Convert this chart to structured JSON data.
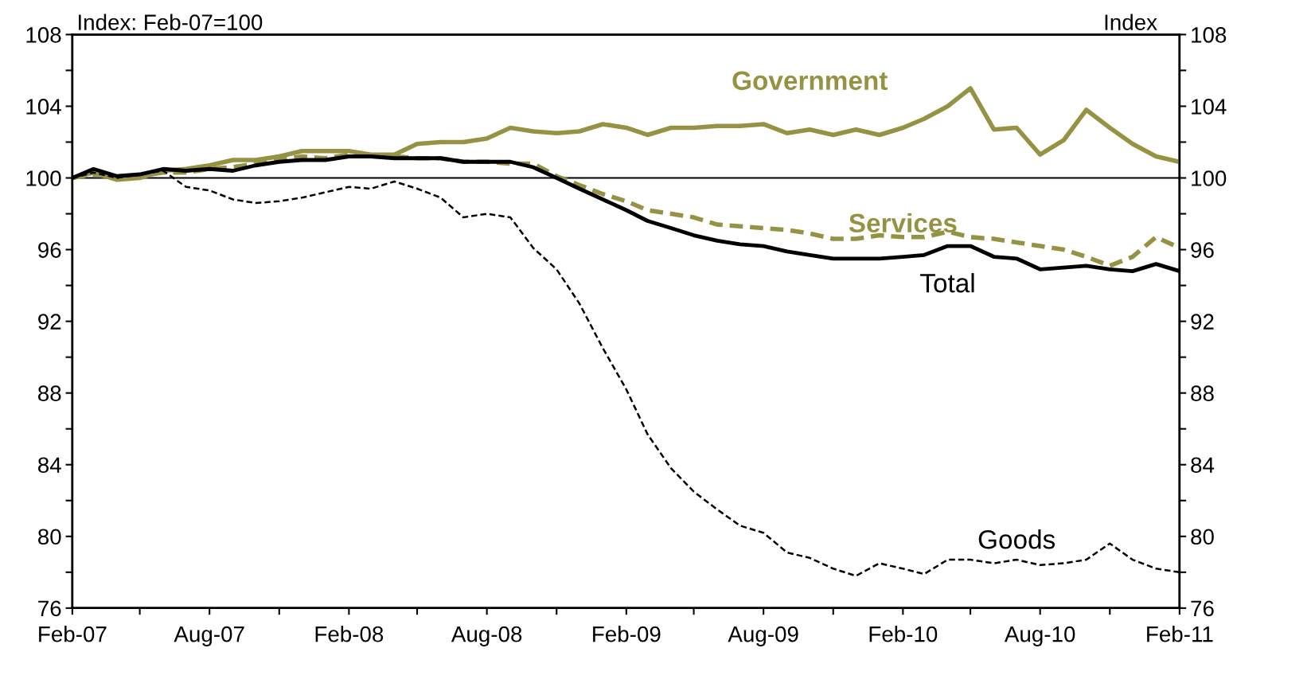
{
  "chart_data": {
    "type": "line",
    "ylabel": "Index: Feb-07=100",
    "y2label": "Index",
    "x": [
      "2007-02",
      "2007-03",
      "2007-04",
      "2007-05",
      "2007-06",
      "2007-07",
      "2007-08",
      "2007-09",
      "2007-10",
      "2007-11",
      "2007-12",
      "2008-01",
      "2008-02",
      "2008-03",
      "2008-04",
      "2008-05",
      "2008-06",
      "2008-07",
      "2008-08",
      "2008-09",
      "2008-10",
      "2008-11",
      "2008-12",
      "2009-01",
      "2009-02",
      "2009-03",
      "2009-04",
      "2009-05",
      "2009-06",
      "2009-07",
      "2009-08",
      "2009-09",
      "2009-10",
      "2009-11",
      "2009-12",
      "2010-01",
      "2010-02",
      "2010-03",
      "2010-04",
      "2010-05",
      "2010-06",
      "2010-07",
      "2010-08",
      "2010-09",
      "2010-10",
      "2010-11",
      "2010-12",
      "2011-01",
      "2011-02"
    ],
    "series": [
      {
        "name": "Government",
        "color": "#959343",
        "line_style": "solid",
        "values": [
          100,
          100.3,
          99.9,
          100.0,
          100.4,
          100.5,
          100.7,
          101.0,
          101.0,
          101.2,
          101.5,
          101.5,
          101.5,
          101.3,
          101.3,
          101.9,
          102.0,
          102.0,
          102.2,
          102.8,
          102.6,
          102.5,
          102.6,
          103.0,
          102.8,
          102.4,
          102.8,
          102.8,
          102.9,
          102.9,
          103.0,
          102.5,
          102.7,
          102.4,
          102.7,
          102.4,
          102.8,
          103.3,
          104.0,
          105.0,
          102.7,
          102.8,
          101.3,
          102.1,
          103.8,
          102.8,
          101.9,
          101.2,
          100.9
        ]
      },
      {
        "name": "Services",
        "color": "#959343",
        "line_style": "dashed",
        "values": [
          100,
          100.2,
          100.0,
          100.1,
          100.3,
          100.3,
          100.5,
          100.6,
          100.8,
          101.0,
          101.2,
          101.1,
          101.3,
          101.2,
          101.2,
          101.1,
          101.1,
          100.9,
          100.9,
          100.8,
          100.8,
          100.1,
          99.6,
          99.1,
          98.7,
          98.2,
          98.0,
          97.8,
          97.4,
          97.3,
          97.2,
          97.1,
          96.9,
          96.6,
          96.6,
          96.8,
          96.7,
          96.7,
          97.0,
          96.7,
          96.6,
          96.4,
          96.2,
          96.0,
          95.6,
          95.1,
          95.6,
          96.7,
          96.1
        ]
      },
      {
        "name": "Total",
        "color": "#000000",
        "line_style": "solid",
        "values": [
          100,
          100.5,
          100.1,
          100.2,
          100.5,
          100.4,
          100.5,
          100.4,
          100.7,
          100.9,
          101.0,
          101.0,
          101.2,
          101.2,
          101.1,
          101.1,
          101.1,
          100.9,
          100.9,
          100.9,
          100.6,
          100.0,
          99.4,
          98.8,
          98.2,
          97.6,
          97.2,
          96.8,
          96.5,
          96.3,
          96.2,
          95.9,
          95.7,
          95.5,
          95.5,
          95.5,
          95.6,
          95.7,
          96.2,
          96.2,
          95.6,
          95.5,
          94.9,
          95.0,
          95.1,
          94.9,
          94.8,
          95.2,
          94.8
        ]
      },
      {
        "name": "Goods",
        "color": "#000000",
        "line_style": "dashed",
        "values": [
          100,
          100.3,
          100.0,
          100.2,
          100.4,
          99.5,
          99.3,
          98.8,
          98.6,
          98.7,
          98.9,
          99.2,
          99.5,
          99.4,
          99.8,
          99.4,
          98.9,
          97.8,
          98.0,
          97.8,
          96.1,
          94.9,
          93.0,
          90.5,
          88.2,
          85.7,
          83.8,
          82.5,
          81.5,
          80.6,
          80.2,
          79.1,
          78.8,
          78.2,
          77.8,
          78.5,
          78.2,
          77.9,
          78.7,
          78.7,
          78.5,
          78.7,
          78.4,
          78.5,
          78.7,
          79.6,
          78.7,
          78.2,
          78.0
        ]
      }
    ],
    "xlim": [
      "2007-02",
      "2011-02"
    ],
    "xticks": [
      {
        "value": "2007-02",
        "label": "Feb-07"
      },
      {
        "value": "2007-05",
        "label": null
      },
      {
        "value": "2007-08",
        "label": "Aug-07"
      },
      {
        "value": "2007-11",
        "label": null
      },
      {
        "value": "2008-02",
        "label": "Feb-08"
      },
      {
        "value": "2008-05",
        "label": null
      },
      {
        "value": "2008-08",
        "label": "Aug-08"
      },
      {
        "value": "2008-11",
        "label": null
      },
      {
        "value": "2009-02",
        "label": "Feb-09"
      },
      {
        "value": "2009-05",
        "label": null
      },
      {
        "value": "2009-08",
        "label": "Aug-09"
      },
      {
        "value": "2009-11",
        "label": null
      },
      {
        "value": "2010-02",
        "label": "Feb-10"
      },
      {
        "value": "2010-05",
        "label": null
      },
      {
        "value": "2010-08",
        "label": "Aug-10"
      },
      {
        "value": "2010-11",
        "label": null
      },
      {
        "value": "2011-02",
        "label": "Feb-11"
      }
    ],
    "ylim": [
      76,
      108
    ],
    "yticks": [
      76,
      {
        "value": 78,
        "label": null
      },
      80,
      {
        "value": 82,
        "label": null
      },
      84,
      {
        "value": 86,
        "label": null
      },
      88,
      {
        "value": 90,
        "label": null
      },
      92,
      {
        "value": 94,
        "label": null
      },
      96,
      {
        "value": 98,
        "label": null
      },
      100,
      {
        "value": 102,
        "label": null
      },
      104,
      {
        "value": 106,
        "label": null
      },
      108
    ],
    "y2lim": [
      76,
      108
    ],
    "y2ticks": [
      76,
      {
        "value": 78,
        "label": null
      },
      80,
      {
        "value": 82,
        "label": null
      },
      84,
      {
        "value": 86,
        "label": null
      },
      88,
      {
        "value": 90,
        "label": null
      },
      92,
      {
        "value": 94,
        "label": null
      },
      96,
      {
        "value": 98,
        "label": null
      },
      100,
      {
        "value": 102,
        "label": null
      },
      104,
      {
        "value": 106,
        "label": null
      },
      108
    ],
    "ref_lines": [
      {
        "axis": "y",
        "value": 100,
        "color": "#000000",
        "line_style": "solid"
      }
    ],
    "grid": false,
    "legend": false,
    "marker": "none"
  }
}
